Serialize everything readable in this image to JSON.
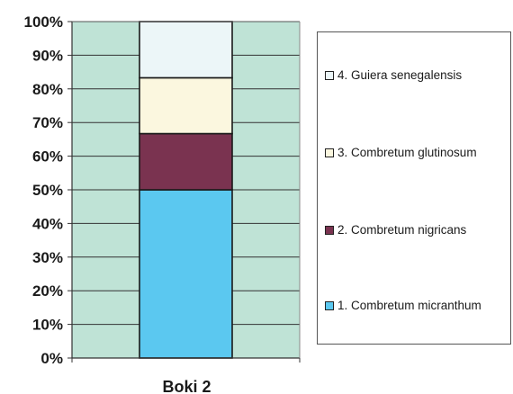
{
  "chart_data": {
    "type": "bar",
    "stacked": true,
    "normalized": true,
    "categories": [
      "Boki 2"
    ],
    "series": [
      {
        "name": "1. Combretum micranthum",
        "values": [
          50
        ],
        "color": "#5BC8F0"
      },
      {
        "name": "2. Combretum nigricans",
        "values": [
          16.7
        ],
        "color": "#7A3350"
      },
      {
        "name": "3. Combretum glutinosum",
        "values": [
          16.6
        ],
        "color": "#FBF7DF"
      },
      {
        "name": "4. Guiera senegalensis",
        "values": [
          16.7
        ],
        "color": "#ECF6F8"
      }
    ],
    "y_ticks": [
      "0%",
      "10%",
      "20%",
      "30%",
      "40%",
      "50%",
      "60%",
      "70%",
      "80%",
      "90%",
      "100%"
    ],
    "ylim": [
      0,
      100
    ],
    "grid": true,
    "plot_background": "#BFE3D6",
    "legend_position": "right",
    "legend_order": [
      3,
      2,
      1,
      0
    ]
  }
}
